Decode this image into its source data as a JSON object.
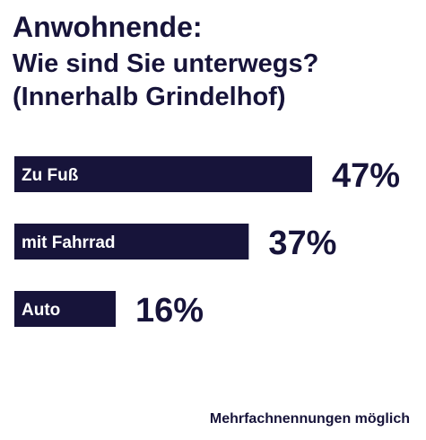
{
  "chart_data": {
    "type": "bar",
    "orientation": "horizontal",
    "title_lines": [
      "Anwohnende:",
      "Wie sind Sie unterwegs?",
      "(Innerhalb Grindelhof)"
    ],
    "categories": [
      "Zu Fuß",
      "mit Fahrrad",
      "Auto"
    ],
    "values": [
      47,
      37,
      16
    ],
    "value_labels": [
      "47%",
      "37%",
      "16%"
    ],
    "unit": "%",
    "xlim": [
      0,
      100
    ],
    "grid": false,
    "legend": "none",
    "footnote": "Mehrfachnennungen möglich"
  },
  "colors": {
    "bar": "#17143a",
    "bar_text": "#ffffff",
    "text": "#17143a",
    "background": "#ffffff"
  }
}
